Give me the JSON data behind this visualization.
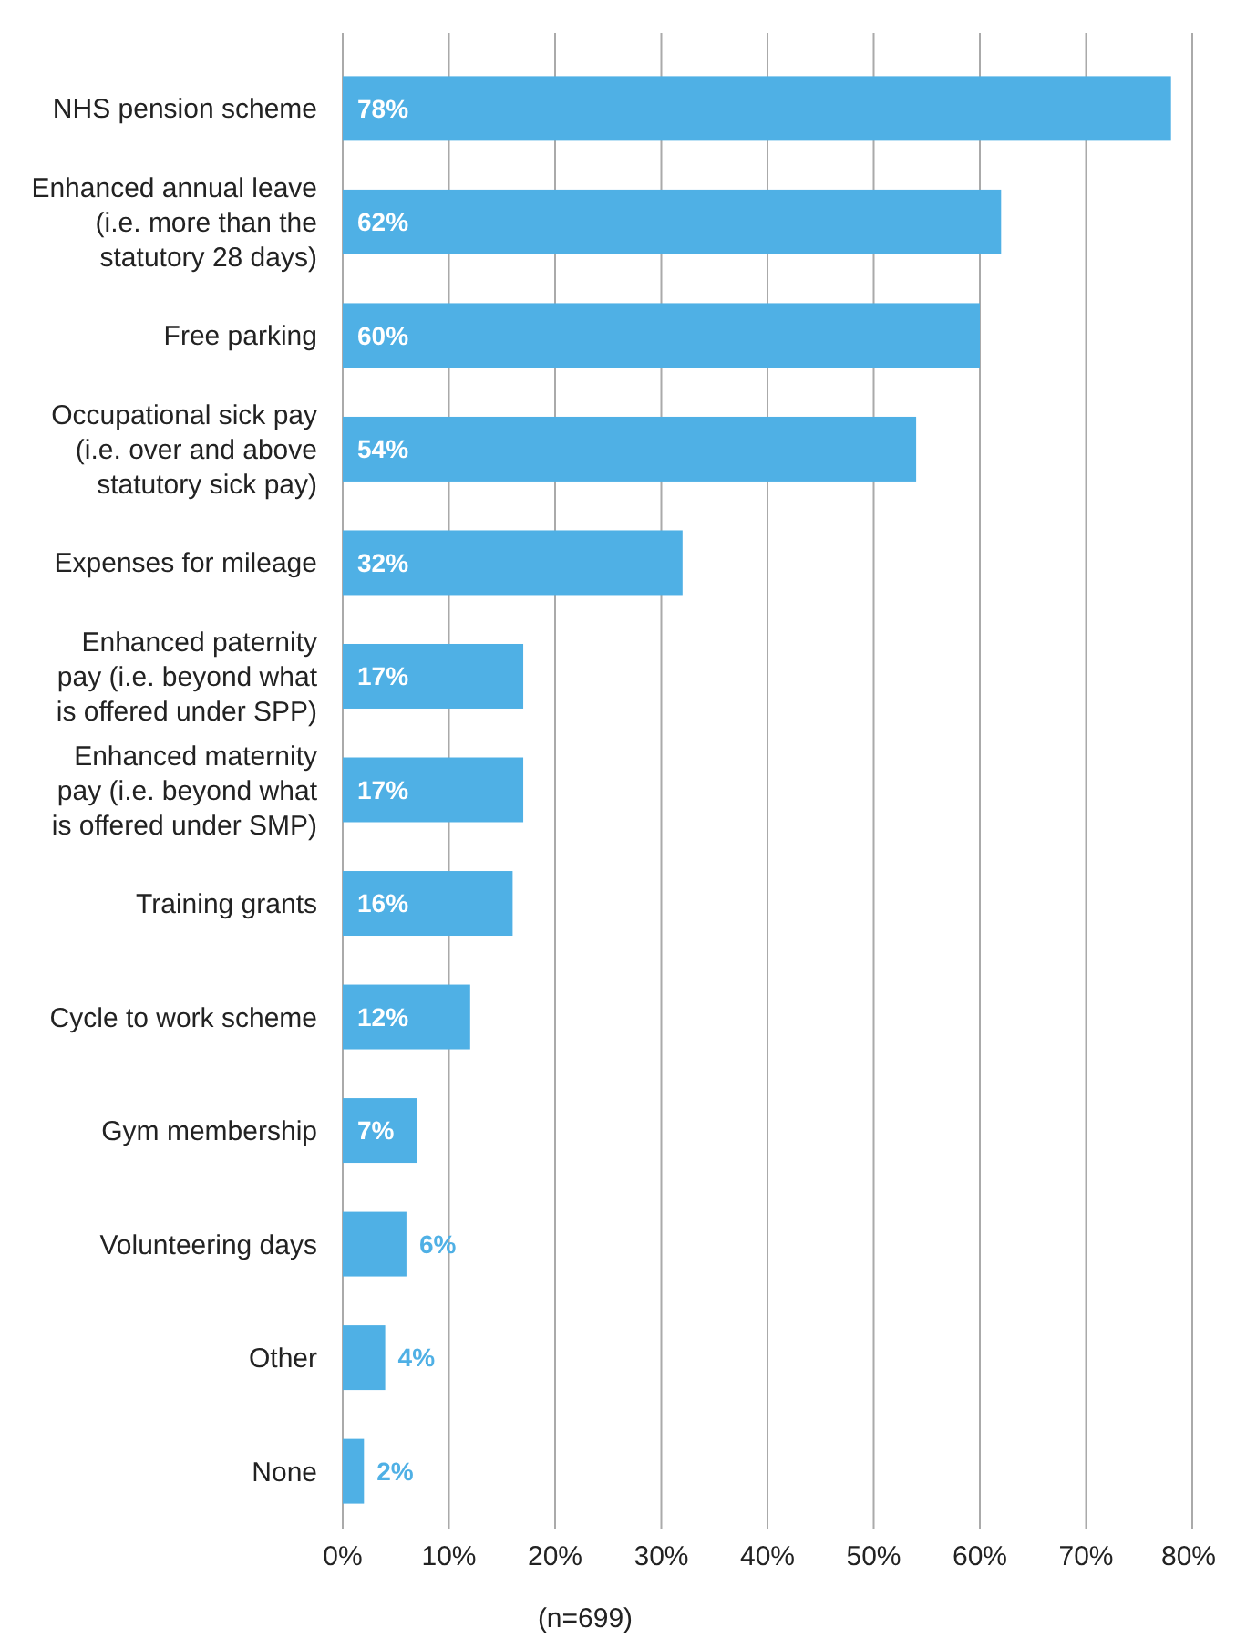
{
  "chart_data": {
    "type": "bar",
    "orientation": "horizontal",
    "categories": [
      "NHS pension scheme",
      "Enhanced annual leave (i.e. more than the statutory 28 days)",
      "Free parking",
      "Occupational sick pay (i.e. over and above statutory sick pay)",
      "Expenses for mileage",
      "Enhanced paternity pay (i.e. beyond what is offered under SPP)",
      "Enhanced maternity pay (i.e. beyond what is offered under SMP)",
      "Training grants",
      "Cycle to work scheme",
      "Gym membership",
      "Volunteering days",
      "Other",
      "None"
    ],
    "values": [
      78,
      62,
      60,
      54,
      32,
      17,
      17,
      16,
      12,
      7,
      6,
      4,
      2
    ],
    "value_labels": [
      "78%",
      "62%",
      "60%",
      "54%",
      "32%",
      "17%",
      "17%",
      "16%",
      "12%",
      "7%",
      "6%",
      "4%",
      "2%"
    ],
    "color": "#4fb0e5",
    "xlim": [
      0,
      80
    ],
    "xticks": [
      {
        "value": 0,
        "label": "0%"
      },
      {
        "value": 10,
        "label": "10%"
      },
      {
        "value": 20,
        "label": "20%"
      },
      {
        "value": 30,
        "label": "30%"
      },
      {
        "value": 40,
        "label": "40%"
      },
      {
        "value": 50,
        "label": "50%"
      },
      {
        "value": 60,
        "label": "60%"
      },
      {
        "value": 70,
        "label": "70%"
      },
      {
        "value": 80,
        "label": "80%"
      }
    ],
    "grid": "x",
    "xlabel": "(n=699)"
  }
}
